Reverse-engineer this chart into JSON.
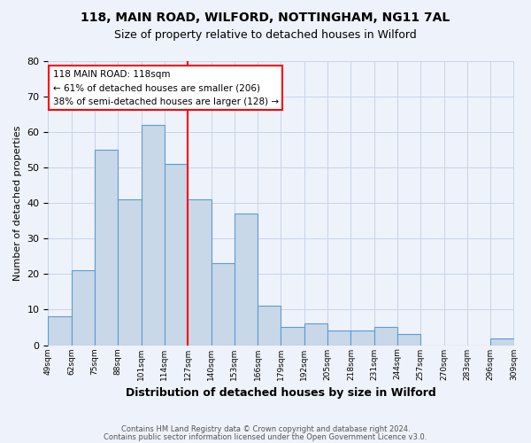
{
  "title1": "118, MAIN ROAD, WILFORD, NOTTINGHAM, NG11 7AL",
  "title2": "Size of property relative to detached houses in Wilford",
  "xlabel": "Distribution of detached houses by size in Wilford",
  "ylabel": "Number of detached properties",
  "footnote1": "Contains HM Land Registry data © Crown copyright and database right 2024.",
  "footnote2": "Contains public sector information licensed under the Open Government Licence v3.0.",
  "bin_labels": [
    "49sqm",
    "62sqm",
    "75sqm",
    "88sqm",
    "101sqm",
    "114sqm",
    "127sqm",
    "140sqm",
    "153sqm",
    "166sqm",
    "179sqm",
    "192sqm",
    "205sqm",
    "218sqm",
    "231sqm",
    "244sqm",
    "257sqm",
    "270sqm",
    "283sqm",
    "296sqm",
    "309sqm"
  ],
  "bar_values": [
    8,
    21,
    55,
    41,
    62,
    51,
    41,
    23,
    37,
    11,
    5,
    6,
    4,
    4,
    5,
    3,
    0,
    0,
    0,
    2
  ],
  "bar_color": "#c8d8e8",
  "bar_edge_color": "#5b9bd5",
  "red_line_index": 5,
  "annotation_text1": "118 MAIN ROAD: 118sqm",
  "annotation_text2": "← 61% of detached houses are smaller (206)",
  "annotation_text3": "38% of semi-detached houses are larger (128) →",
  "annotation_box_color": "white",
  "annotation_box_edge": "red",
  "vline_color": "red",
  "ylim": [
    0,
    80
  ],
  "yticks": [
    0,
    10,
    20,
    30,
    40,
    50,
    60,
    70,
    80
  ],
  "grid_color": "#c8d4e8",
  "background_color": "#eef2fa"
}
